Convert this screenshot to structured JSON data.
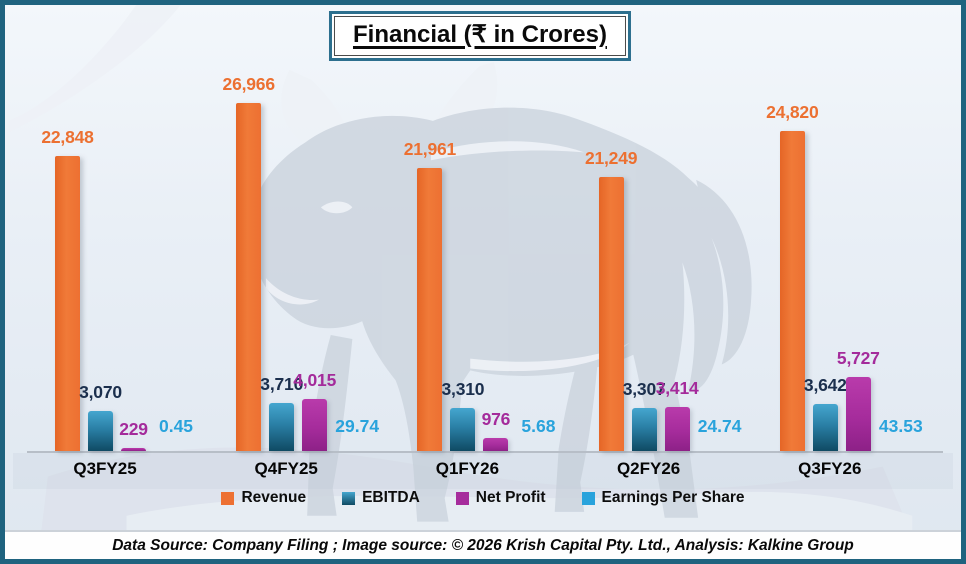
{
  "title": "Financial (₹ in Crores)",
  "footer": "Data Source: Company Filing ; Image source: © 2026 Krish Capital Pty. Ltd., Analysis: Kalkine Group",
  "colors": {
    "revenue": "#ed7032",
    "ebitda_top": "#45a6cf",
    "ebitda_bottom": "#0f4a63",
    "net_profit": "#a62c9c",
    "eps": "#29a3dc",
    "frame_border": "#1f637f"
  },
  "legend": [
    {
      "label": "Revenue",
      "color": "#ed7032"
    },
    {
      "label": "EBITDA",
      "color": "#1b5e7b"
    },
    {
      "label": "Net Profit",
      "color": "#a62c9c"
    },
    {
      "label": "Earnings Per Share",
      "color": "#29a3dc"
    }
  ],
  "chart_data": {
    "type": "bar",
    "title": "Financial (₹ in Crores)",
    "categories": [
      "Q3FY25",
      "Q4FY25",
      "Q1FY26",
      "Q2FY26",
      "Q3FY26"
    ],
    "series": [
      {
        "name": "Revenue",
        "values": [
          22848,
          26966,
          21961,
          21249,
          24820
        ],
        "labels": [
          "22,848",
          "26,966",
          "21,961",
          "21,249",
          "24,820"
        ]
      },
      {
        "name": "EBITDA",
        "values": [
          3070,
          3710,
          3310,
          3307,
          3642
        ],
        "labels": [
          "3,070",
          "3,710",
          "3,310",
          "3,307",
          "3,642"
        ]
      },
      {
        "name": "Net Profit",
        "values": [
          229,
          4015,
          976,
          3414,
          5727
        ],
        "labels": [
          "229",
          "4,015",
          "976",
          "3,414",
          "5,727"
        ]
      },
      {
        "name": "Earnings Per Share",
        "values": [
          0.45,
          29.74,
          5.68,
          24.74,
          43.53
        ],
        "labels": [
          "0.45",
          "29.74",
          "5.68",
          "24.74",
          "43.53"
        ]
      }
    ],
    "xlabel": "",
    "ylabel": "",
    "ylim": [
      0,
      28500
    ],
    "grid": false,
    "legend_position": "bottom",
    "value_labels_shown": true,
    "eps_bars_visible": false
  }
}
